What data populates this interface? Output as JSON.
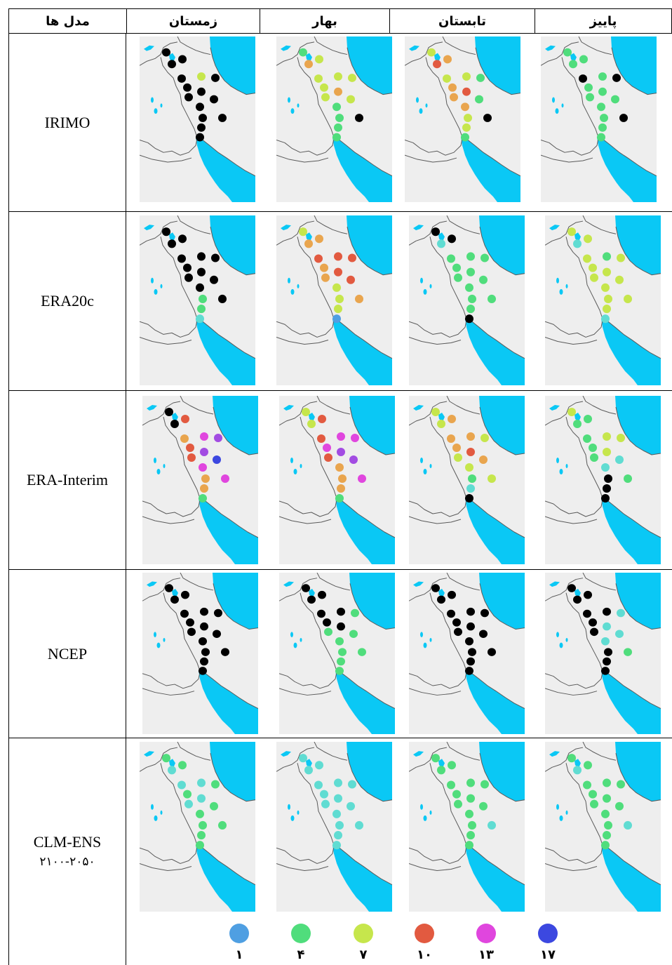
{
  "header": {
    "models": "مدل ها",
    "seasons": [
      "زمستان",
      "بهار",
      "تابستان",
      "پاییز"
    ]
  },
  "palette": {
    "sea": "#0ac8f5",
    "land": "#eeeeee",
    "border": "#5a5a5a",
    "black": "#000000",
    "lightblue": "#4f9fe2",
    "cyan": "#60dcd2",
    "green": "#50dd7c",
    "yellowgreen": "#c6e64c",
    "orange": "#e9a54e",
    "red": "#e25a40",
    "magenta": "#e046de",
    "violet": "#a24ce2",
    "blue": "#3c48e0"
  },
  "rows": [
    {
      "label": "IRIMO",
      "maps": [
        [
          "black",
          "black",
          "black",
          "black",
          "yellowgreen",
          "black",
          "black",
          "black",
          "black",
          "black",
          "black",
          "black",
          "black",
          "black",
          "black"
        ],
        [
          "green",
          "yellowgreen",
          "orange",
          "yellowgreen",
          "yellowgreen",
          "yellowgreen",
          "yellowgreen",
          "orange",
          "yellowgreen",
          "yellowgreen",
          "green",
          "green",
          "black",
          "green",
          "green"
        ],
        [
          "yellowgreen",
          "orange",
          "red",
          "yellowgreen",
          "yellowgreen",
          "green",
          "orange",
          "red",
          "green",
          "orange",
          "orange",
          "yellowgreen",
          "black",
          "yellowgreen",
          "green"
        ],
        [
          "green",
          "green",
          "green",
          "black",
          "green",
          "black",
          "green",
          "green",
          "green",
          "green",
          "green",
          "green",
          "black",
          "green",
          "green"
        ]
      ]
    },
    {
      "label": "ERA20c",
      "maps": [
        [
          "black",
          "black",
          "black",
          "black",
          "black",
          "black",
          "black",
          "black",
          "black",
          "black",
          "black",
          "green",
          "black",
          "green",
          "cyan"
        ],
        [
          "yellowgreen",
          "orange",
          "orange",
          "red",
          "red",
          "red",
          "orange",
          "red",
          "red",
          "orange",
          "yellowgreen",
          "yellowgreen",
          "orange",
          "yellowgreen",
          "lightblue"
        ],
        [
          "black",
          "black",
          "cyan",
          "green",
          "green",
          "green",
          "green",
          "green",
          "green",
          "green",
          "green",
          "green",
          "green",
          "green",
          "black"
        ],
        [
          "yellowgreen",
          "yellowgreen",
          "cyan",
          "yellowgreen",
          "green",
          "yellowgreen",
          "yellowgreen",
          "yellowgreen",
          "yellowgreen",
          "yellowgreen",
          "yellowgreen",
          "yellowgreen",
          "yellowgreen",
          "yellowgreen",
          "cyan"
        ]
      ]
    },
    {
      "label": "ERA-Interim",
      "maps": [
        [
          "black",
          "red",
          "black",
          "orange",
          "magenta",
          "violet",
          "red",
          "violet",
          "blue",
          "red",
          "magenta",
          "orange",
          "magenta",
          "orange",
          "green"
        ],
        [
          "yellowgreen",
          "red",
          "yellowgreen",
          "red",
          "magenta",
          "magenta",
          "magenta",
          "violet",
          "violet",
          "red",
          "orange",
          "orange",
          "magenta",
          "orange",
          "green"
        ],
        [
          "yellowgreen",
          "orange",
          "yellowgreen",
          "orange",
          "orange",
          "yellowgreen",
          "orange",
          "red",
          "orange",
          "yellowgreen",
          "yellowgreen",
          "green",
          "yellowgreen",
          "cyan",
          "black"
        ],
        [
          "yellowgreen",
          "green",
          "green",
          "green",
          "yellowgreen",
          "yellowgreen",
          "green",
          "yellowgreen",
          "cyan",
          "green",
          "cyan",
          "black",
          "green",
          "black",
          "black"
        ]
      ]
    },
    {
      "label": "NCEP",
      "maps": [
        [
          "black",
          "black",
          "black",
          "black",
          "black",
          "black",
          "black",
          "black",
          "black",
          "black",
          "black",
          "black",
          "black",
          "black",
          "black"
        ],
        [
          "black",
          "black",
          "black",
          "black",
          "black",
          "green",
          "black",
          "black",
          "green",
          "green",
          "green",
          "green",
          "green",
          "green",
          "green"
        ],
        [
          "black",
          "black",
          "black",
          "black",
          "black",
          "black",
          "black",
          "black",
          "black",
          "black",
          "black",
          "black",
          "black",
          "black",
          "black"
        ],
        [
          "black",
          "black",
          "black",
          "black",
          "black",
          "cyan",
          "black",
          "cyan",
          "cyan",
          "black",
          "cyan",
          "black",
          "green",
          "black",
          "black"
        ]
      ]
    },
    {
      "label": "CLM-ENS",
      "sublabel": "۲۱۰۰-۲۰۵۰",
      "maps": [
        [
          "green",
          "green",
          "cyan",
          "cyan",
          "cyan",
          "green",
          "green",
          "cyan",
          "green",
          "cyan",
          "green",
          "green",
          "green",
          "green",
          "green"
        ],
        [
          "cyan",
          "cyan",
          "cyan",
          "cyan",
          "cyan",
          "cyan",
          "cyan",
          "cyan",
          "cyan",
          "cyan",
          "cyan",
          "cyan",
          "cyan",
          "cyan",
          "cyan"
        ],
        [
          "green",
          "green",
          "green",
          "green",
          "green",
          "green",
          "green",
          "green",
          "green",
          "green",
          "green",
          "green",
          "cyan",
          "green",
          "green"
        ],
        [
          "green",
          "green",
          "cyan",
          "green",
          "green",
          "green",
          "green",
          "green",
          "green",
          "green",
          "green",
          "green",
          "cyan",
          "green",
          "green"
        ]
      ]
    }
  ],
  "legend": [
    {
      "label": "۱",
      "color": "lightblue"
    },
    {
      "label": "۴",
      "color": "green"
    },
    {
      "label": "۷",
      "color": "yellowgreen"
    },
    {
      "label": "۱۰",
      "color": "red"
    },
    {
      "label": "۱۳",
      "color": "magenta"
    },
    {
      "label": "۱۷",
      "color": "blue"
    }
  ]
}
